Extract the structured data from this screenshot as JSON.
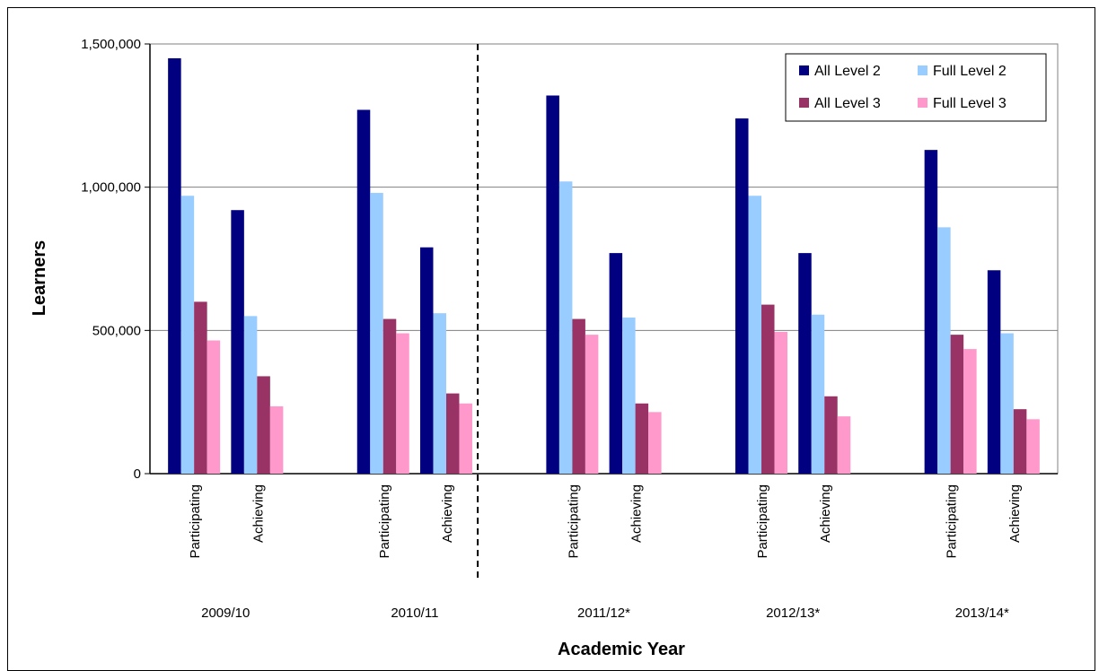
{
  "chart_data": {
    "type": "bar",
    "ylabel": "Learners",
    "xlabel": "Academic Year",
    "ylim": [
      0,
      1500000
    ],
    "yticks": [
      0,
      500000,
      1000000,
      1500000
    ],
    "ytick_labels": [
      "0",
      "500,000",
      "1,000,000",
      "1,500,000"
    ],
    "grid": true,
    "legend_position": "top-right",
    "groups": [
      {
        "label": "2009/10",
        "categories": [
          "Participating",
          "Achieving"
        ]
      },
      {
        "label": "2010/11",
        "categories": [
          "Participating",
          "Achieving"
        ]
      },
      {
        "label": "2011/12*",
        "categories": [
          "Participating",
          "Achieving"
        ]
      },
      {
        "label": "2012/13*",
        "categories": [
          "Participating",
          "Achieving"
        ]
      },
      {
        "label": "2013/14*",
        "categories": [
          "Participating",
          "Achieving"
        ]
      }
    ],
    "series": [
      {
        "name": "All Level 2",
        "color": "#000080",
        "values": [
          1450000,
          920000,
          1270000,
          790000,
          1320000,
          770000,
          1240000,
          770000,
          1130000,
          710000
        ]
      },
      {
        "name": "Full Level 2",
        "color": "#99CCFF",
        "values": [
          970000,
          550000,
          980000,
          560000,
          1020000,
          545000,
          970000,
          555000,
          860000,
          490000
        ]
      },
      {
        "name": "All Level 3",
        "color": "#993366",
        "values": [
          600000,
          340000,
          540000,
          280000,
          540000,
          245000,
          590000,
          270000,
          485000,
          225000
        ]
      },
      {
        "name": "Full Level 3",
        "color": "#FF99CC",
        "values": [
          465000,
          235000,
          490000,
          245000,
          485000,
          215000,
          495000,
          200000,
          435000,
          190000
        ]
      }
    ],
    "legend_order": [
      0,
      1,
      2,
      3
    ],
    "divider_after_group": 1
  }
}
